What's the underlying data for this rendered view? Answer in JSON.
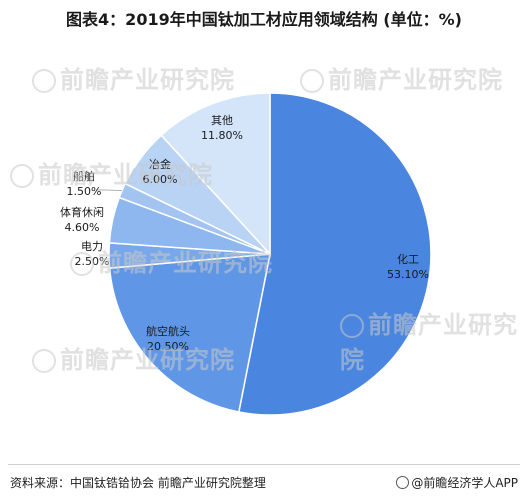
{
  "title": "图表4：2019年中国钛加工材应用领域结构 (单位：%)",
  "watermark": "前瞻产业研究院",
  "chart_data": {
    "type": "pie",
    "title": "图表4：2019年中国钛加工材应用领域结构 (单位：%)",
    "slices": [
      {
        "label": "化工",
        "value": 53.1,
        "display": "53.10%",
        "color": "#4a86e0"
      },
      {
        "label": "航空航头",
        "value": 20.5,
        "display": "20.50%",
        "color": "#5f97e6"
      },
      {
        "label": "电力",
        "value": 2.5,
        "display": "2.50%",
        "color": "#79a8ea"
      },
      {
        "label": "体育休闲",
        "value": 4.6,
        "display": "4.60%",
        "color": "#8db7ee"
      },
      {
        "label": "船舶",
        "value": 1.5,
        "display": "1.50%",
        "color": "#a3c4f0"
      },
      {
        "label": "冶金",
        "value": 6.0,
        "display": "6.00%",
        "color": "#b9d3f4"
      },
      {
        "label": "其他",
        "value": 11.8,
        "display": "11.80%",
        "color": "#d4e4f9"
      }
    ]
  },
  "footer": {
    "source": "资料来源：中国钛锆铪协会  前瞻产业研究院整理",
    "brand": "@前瞻经济学人APP"
  }
}
